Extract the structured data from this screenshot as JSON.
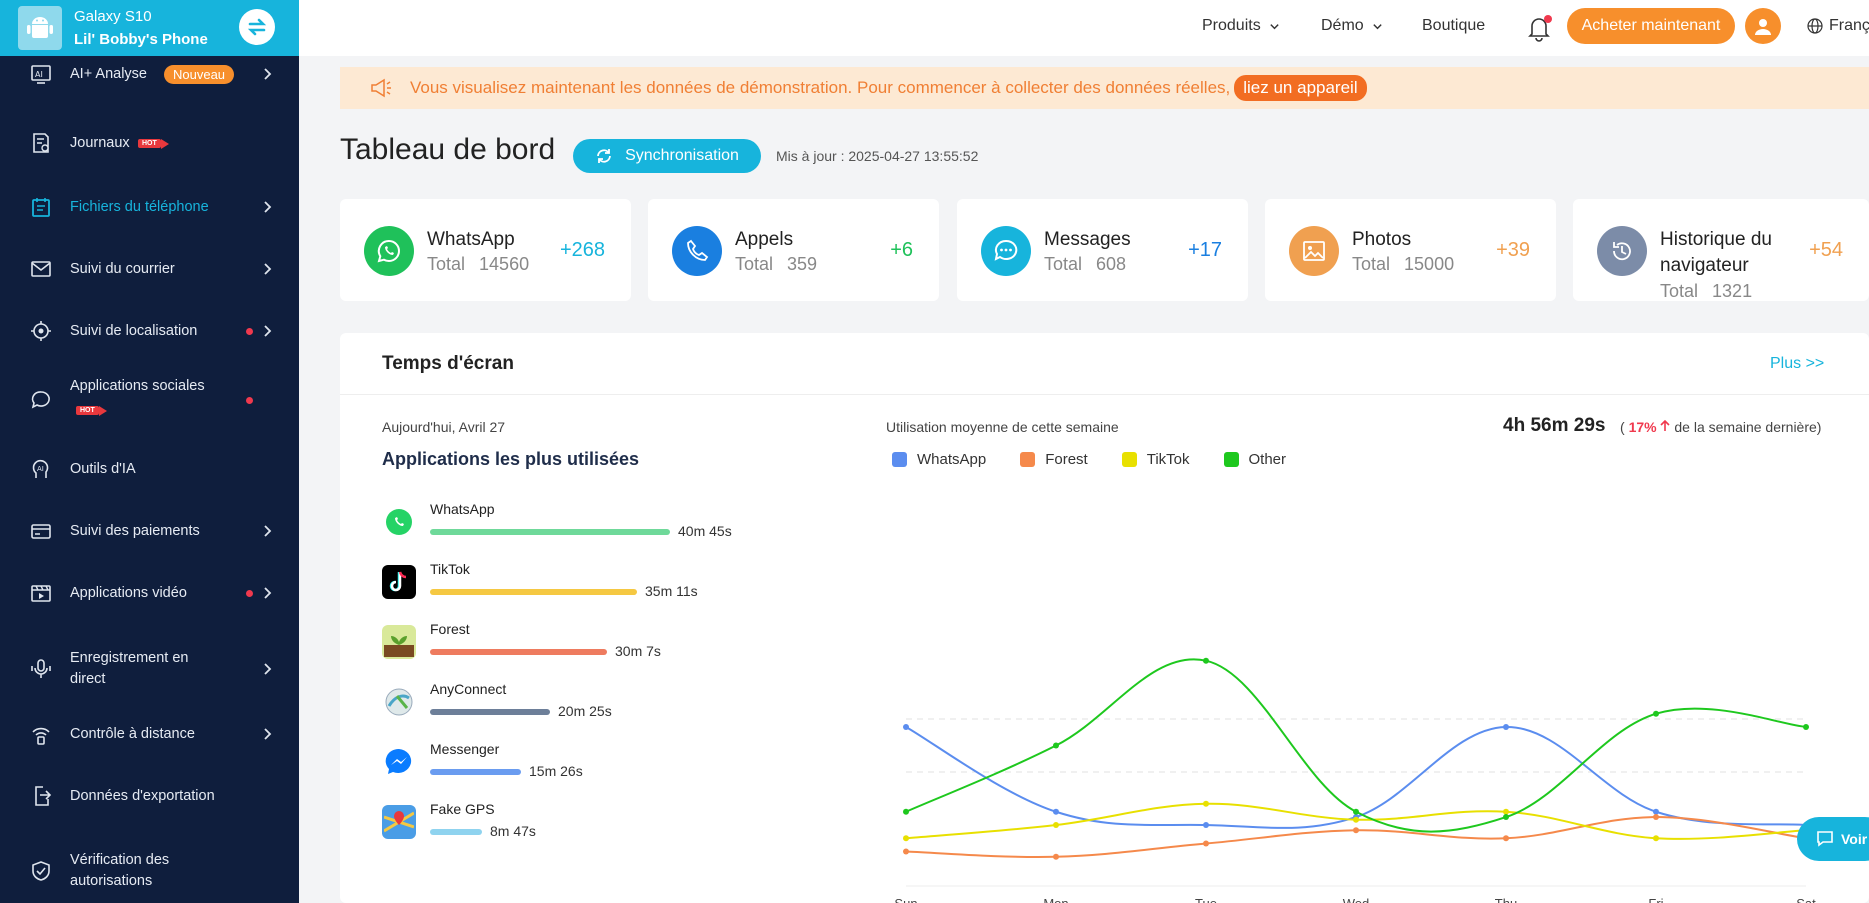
{
  "device": {
    "model": "Galaxy S10",
    "owner": "Lil' Bobby's Phone"
  },
  "sidebar": {
    "items": [
      {
        "label": "AI+ Analyse",
        "badge": "Nouveau"
      },
      {
        "label": "Journaux",
        "hot": "HOT"
      },
      {
        "label": "Fichiers du téléphone"
      },
      {
        "label": "Suivi du courrier"
      },
      {
        "label": "Suivi de localisation"
      },
      {
        "label": "Applications sociales",
        "hot": "HOT"
      },
      {
        "label": "Outils d'IA"
      },
      {
        "label": "Suivi des paiements"
      },
      {
        "label": "Applications vidéo"
      },
      {
        "label": "Enregistrement en direct"
      },
      {
        "label": "Contrôle à distance"
      },
      {
        "label": "Données d'exportation"
      },
      {
        "label": "Vérification des autorisations"
      }
    ]
  },
  "topbar": {
    "produits": "Produits",
    "demo": "Démo",
    "boutique": "Boutique",
    "buy": "Acheter maintenant",
    "language": "Français"
  },
  "banner": {
    "text": "Vous visualisez maintenant les données de démonstration. Pour commencer à collecter des données réelles,",
    "link": "liez un appareil"
  },
  "dashboard": {
    "title": "Tableau de bord",
    "sync": "Synchronisation",
    "updated": "Mis à jour : 2025-04-27 13:55:52"
  },
  "cards": [
    {
      "name": "WhatsApp",
      "total_label": "Total",
      "total": "14560",
      "delta": "+268",
      "color": "#1fc15a"
    },
    {
      "name": "Appels",
      "total_label": "Total",
      "total": "359",
      "delta": "+6",
      "color": "#1a7fe0"
    },
    {
      "name": "Messages",
      "total_label": "Total",
      "total": "608",
      "delta": "+17",
      "color": "#17b4dc"
    },
    {
      "name": "Photos",
      "total_label": "Total",
      "total": "15000",
      "delta": "+39",
      "color": "#f0a050"
    },
    {
      "name": "Historique du navigateur",
      "total_label": "Total",
      "total": "1321",
      "delta": "+54",
      "color": "#7c8ca8"
    }
  ],
  "screen_time": {
    "title": "Temps d'écran",
    "more": "Plus >>",
    "today": "Aujourd'hui, Avril 27",
    "most_used_title": "Applications les plus utilisées",
    "apps": [
      {
        "name": "WhatsApp",
        "time": "40m 45s",
        "fraction": 1.0,
        "color": "#6fd99a"
      },
      {
        "name": "TikTok",
        "time": "35m 11s",
        "fraction": 0.863,
        "color": "#f5c842"
      },
      {
        "name": "Forest",
        "time": "30m 7s",
        "fraction": 0.739,
        "color": "#ee7b5f"
      },
      {
        "name": "AnyConnect",
        "time": "20m 25s",
        "fraction": 0.501,
        "color": "#6d7f99"
      },
      {
        "name": "Messenger",
        "time": "15m 26s",
        "fraction": 0.379,
        "color": "#6a9cf0"
      },
      {
        "name": "Fake GPS",
        "time": "8m 47s",
        "fraction": 0.216,
        "color": "#8fd3ef"
      }
    ],
    "avg_label": "Utilisation moyenne de cette semaine",
    "avg_value": "4h 56m 29s",
    "change_pct": "17%",
    "change_suffix": "de la semaine dernière"
  },
  "chart_data": {
    "type": "line",
    "x": [
      "Sun",
      "Mon",
      "Tue",
      "Wed",
      "Thu",
      "Fri",
      "Sat"
    ],
    "ylim": [
      0,
      100
    ],
    "grid": "dashed-horizontal",
    "legend_placement": "top-left",
    "series": [
      {
        "name": "WhatsApp",
        "color": "#5b8def",
        "values": [
          57,
          25,
          20,
          23,
          57,
          25,
          20
        ]
      },
      {
        "name": "Forest",
        "color": "#f5894b",
        "values": [
          10,
          8,
          13,
          18,
          15,
          23,
          15
        ]
      },
      {
        "name": "TikTok",
        "color": "#e8e000",
        "values": [
          15,
          20,
          28,
          22,
          25,
          15,
          18
        ]
      },
      {
        "name": "Other",
        "color": "#1ec81e",
        "values": [
          25,
          50,
          82,
          25,
          23,
          62,
          57
        ]
      }
    ]
  },
  "chat": {
    "label": "Voir"
  }
}
